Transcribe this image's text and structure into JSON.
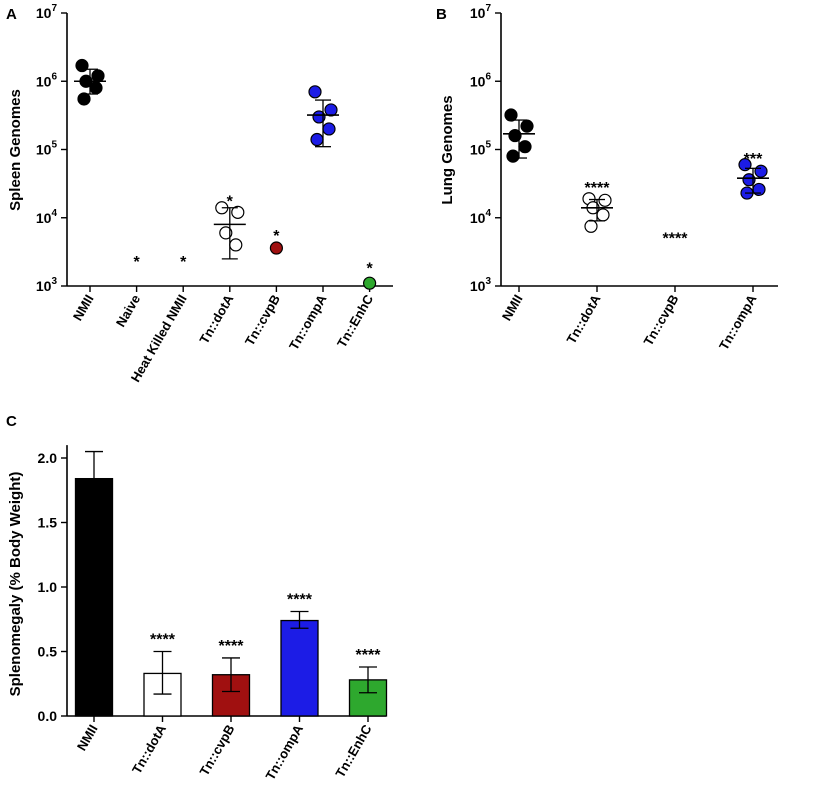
{
  "chart_data": [
    {
      "panel": "A",
      "type": "scatter",
      "scale": "log",
      "ylabel": "Spleen Genomes",
      "ylim": [
        1000,
        10000000
      ],
      "yticks": [
        {
          "base": "10",
          "exp": "3",
          "value": 1000
        },
        {
          "base": "10",
          "exp": "4",
          "value": 10000
        },
        {
          "base": "10",
          "exp": "5",
          "value": 100000
        },
        {
          "base": "10",
          "exp": "6",
          "value": 1000000
        },
        {
          "base": "10",
          "exp": "7",
          "value": 10000000
        }
      ],
      "categories": [
        "NMII",
        "Naive",
        "Heat Killed NMII",
        "Tn::dotA",
        "Tn::cvpB",
        "Tn::ompA",
        "Tn::EnhC"
      ],
      "colors": [
        "#000000",
        "#000000",
        "#000000",
        "#ffffff",
        "#a01010",
        "#1c1ce6",
        "#2ea82e"
      ],
      "points": [
        [
          1700000,
          1200000,
          1000000,
          800000,
          550000
        ],
        [],
        [],
        [
          14000,
          12000,
          6000,
          4000
        ],
        [
          3600
        ],
        [
          700000,
          380000,
          300000,
          200000,
          140000
        ],
        [
          1100
        ]
      ],
      "mean": [
        1000000,
        null,
        null,
        8000,
        null,
        320000,
        null
      ],
      "err_low": [
        650000,
        null,
        null,
        2500,
        null,
        110000,
        null
      ],
      "err_high": [
        1500000,
        null,
        null,
        14000,
        null,
        530000,
        null
      ],
      "sig": [
        {
          "label": "*",
          "value": 2500
        },
        {
          "label": "*",
          "value": 2500
        },
        {
          "label": "*",
          "value": 19000
        },
        {
          "label": "*",
          "value": 6000
        },
        {
          "label": "*",
          "value": 2000
        }
      ],
      "sig_cat": [
        1,
        2,
        3,
        4,
        6
      ]
    },
    {
      "panel": "B",
      "type": "scatter",
      "scale": "log",
      "ylabel": "Lung Genomes",
      "ylim": [
        1000,
        10000000
      ],
      "yticks": [
        {
          "base": "10",
          "exp": "3",
          "value": 1000
        },
        {
          "base": "10",
          "exp": "4",
          "value": 10000
        },
        {
          "base": "10",
          "exp": "5",
          "value": 100000
        },
        {
          "base": "10",
          "exp": "6",
          "value": 1000000
        },
        {
          "base": "10",
          "exp": "7",
          "value": 10000000
        }
      ],
      "categories": [
        "NMII",
        "Tn::dotA",
        "Tn::cvpB",
        "Tn::ompA"
      ],
      "colors": [
        "#000000",
        "#ffffff",
        "#a01010",
        "#1c1ce6"
      ],
      "points": [
        [
          320000,
          220000,
          160000,
          110000,
          80000
        ],
        [
          19000,
          18000,
          14000,
          11000,
          7500
        ],
        [],
        [
          60000,
          48000,
          36000,
          26000,
          23000
        ]
      ],
      "mean": [
        170000,
        14000,
        null,
        38000
      ],
      "err_low": [
        75000,
        9000,
        null,
        23000
      ],
      "err_high": [
        270000,
        18500,
        null,
        53000
      ],
      "sig": [
        {
          "label": "****",
          "value": 30000
        },
        {
          "label": "****",
          "value": 5500
        },
        {
          "label": "***",
          "value": 80000
        }
      ],
      "sig_cat": [
        1,
        2,
        3
      ]
    },
    {
      "panel": "C",
      "type": "bar",
      "ylabel": "Splenomegaly (% Body Weight)",
      "ylim": [
        0,
        2.1
      ],
      "yticks": [
        "0.0",
        "0.5",
        "1.0",
        "1.5",
        "2.0"
      ],
      "categories": [
        "NMII",
        "Tn::dotA",
        "Tn::cvpB",
        "Tn::ompA",
        "Tn::EnhC"
      ],
      "colors": [
        "#000000",
        "#ffffff",
        "#a01010",
        "#1c1ce6",
        "#2ea82e"
      ],
      "values": [
        1.84,
        0.33,
        0.32,
        0.74,
        0.28
      ],
      "err_low": [
        1.63,
        0.17,
        0.19,
        0.68,
        0.18
      ],
      "err_high": [
        2.05,
        0.5,
        0.45,
        0.81,
        0.38
      ],
      "sig": [
        "",
        "****",
        "****",
        "****",
        "****"
      ]
    }
  ]
}
